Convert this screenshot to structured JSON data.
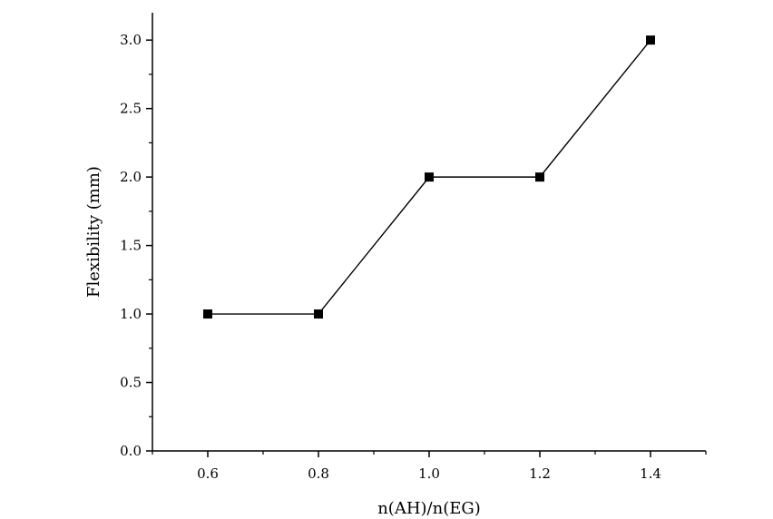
{
  "chart_data": {
    "type": "line",
    "x": [
      0.6,
      0.8,
      1.0,
      1.2,
      1.4
    ],
    "series": [
      {
        "values": [
          1.0,
          1.0,
          2.0,
          2.0,
          3.0
        ]
      }
    ],
    "xlabel": "n(AH)/n(EG)",
    "ylabel": "Flexibility (mm)",
    "xlim": [
      0.5,
      1.5
    ],
    "ylim": [
      0.0,
      3.2
    ],
    "xticks": [
      "0.6",
      "0.8",
      "1.0",
      "1.2",
      "1.4"
    ],
    "yticks": [
      "0.0",
      "0.5",
      "1.0",
      "1.5",
      "2.0",
      "2.5",
      "3.0"
    ],
    "grid": false,
    "marker": "square",
    "color": "#000000"
  }
}
